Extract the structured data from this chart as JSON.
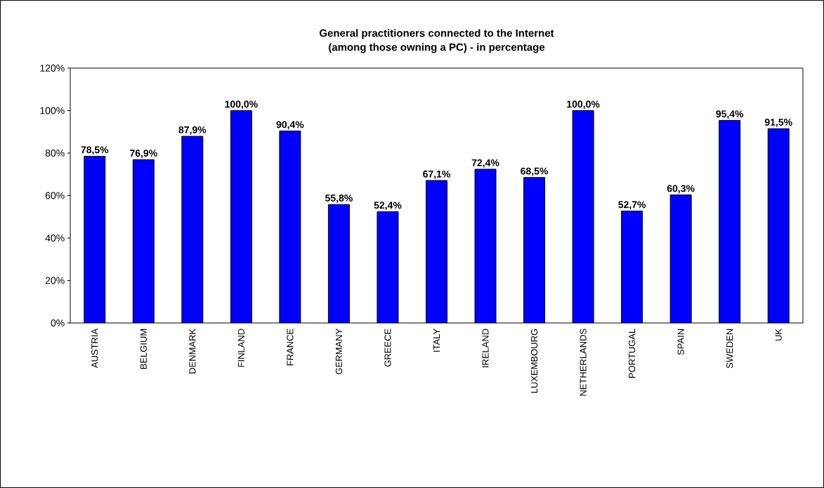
{
  "chart_data": {
    "type": "bar",
    "title": "General practitioners connected to the Internet",
    "subtitle": "(among those owning a PC) - in percentage",
    "categories": [
      "AUSTRIA",
      "BELGIUM",
      "DENMARK",
      "FINLAND",
      "FRANCE",
      "GERMANY",
      "GREECE",
      "ITALY",
      "IRELAND",
      "LUXEMBOURG",
      "NETHERLANDS",
      "PORTUGAL",
      "SPAIN",
      "SWEDEN",
      "UK"
    ],
    "values": [
      78.5,
      76.9,
      87.9,
      100.0,
      90.4,
      55.8,
      52.4,
      67.1,
      72.4,
      68.5,
      100.0,
      52.7,
      60.3,
      95.4,
      91.5
    ],
    "value_labels": [
      "78,5%",
      "76,9%",
      "87,9%",
      "100,0%",
      "90,4%",
      "55,8%",
      "52,4%",
      "67,1%",
      "72,4%",
      "68,5%",
      "100,0%",
      "52,7%",
      "60,3%",
      "95,4%",
      "91,5%"
    ],
    "color": "#0000ff",
    "ylim": [
      0,
      120
    ],
    "yticks": [
      {
        "value": 0,
        "label": "0%"
      },
      {
        "value": 20,
        "label": "20%"
      },
      {
        "value": 40,
        "label": "40%"
      },
      {
        "value": 60,
        "label": "60%"
      },
      {
        "value": 80,
        "label": "80%"
      },
      {
        "value": 100,
        "label": "100%"
      },
      {
        "value": 120,
        "label": "120%"
      }
    ],
    "grid": false
  }
}
